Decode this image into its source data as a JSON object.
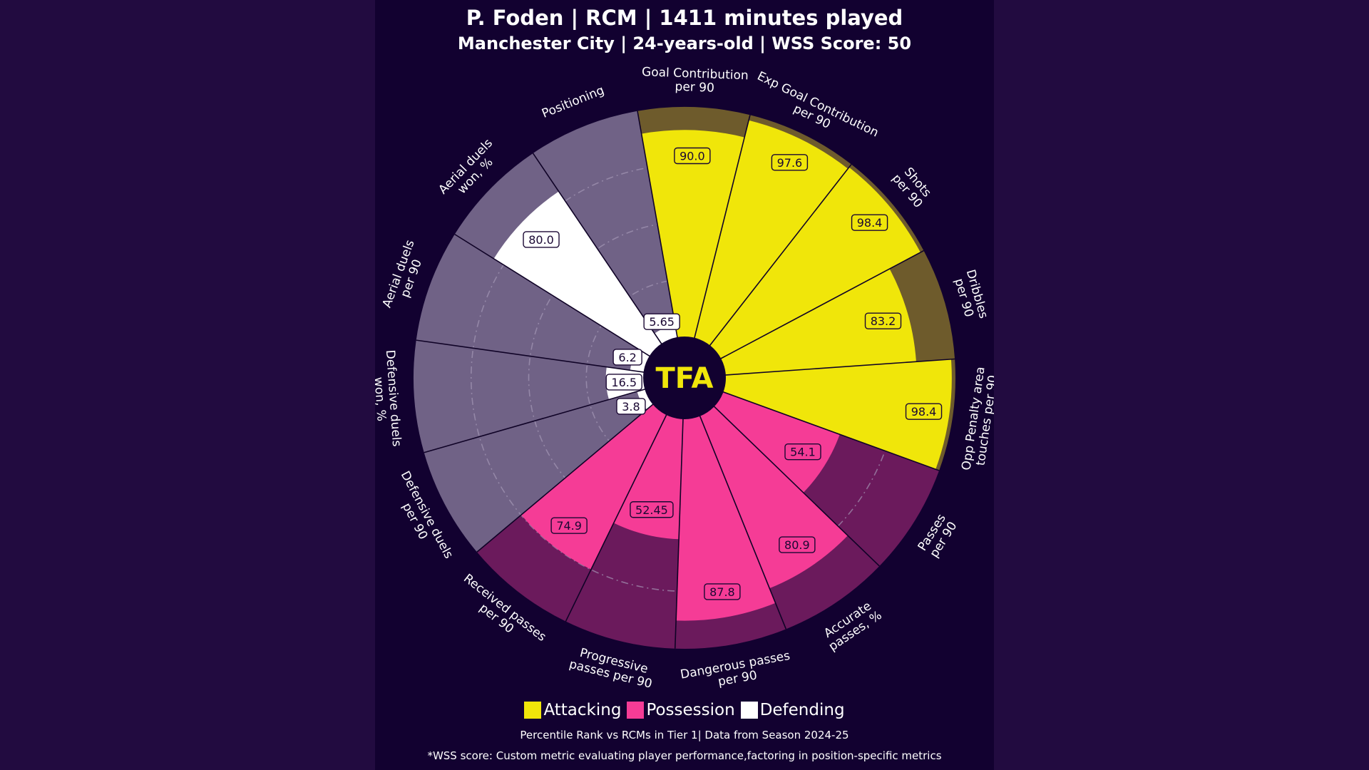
{
  "header": {
    "title": "P. Foden | RCM | 1411 minutes played",
    "subtitle": "Manchester City | 24-years-old | WSS Score: 50"
  },
  "logo_text": "TFA",
  "colors": {
    "attacking": "#f0e60a",
    "possession": "#f53c96",
    "defending": "#ffffff",
    "attacking_bg": "#6e5b2c",
    "possession_bg": "#6b1a5c",
    "defending_bg": "#706286",
    "page_bg": "#220b40",
    "panel_bg": "#120130"
  },
  "chart_data": {
    "type": "radar",
    "metrics": [
      {
        "label": "Goal Contribution\nper 90",
        "value_label": "90.0",
        "percentile": 90.0,
        "category": "attacking"
      },
      {
        "label": "Exp Goal Contribution\nper 90",
        "value_label": "97.6",
        "percentile": 97.6,
        "category": "attacking"
      },
      {
        "label": "Shots\nper 90",
        "value_label": "98.4",
        "percentile": 98.4,
        "category": "attacking"
      },
      {
        "label": "Dribbles\nper 90",
        "value_label": "83.2",
        "percentile": 83.2,
        "category": "attacking"
      },
      {
        "label": "Opp Penalty area\ntouches per 90",
        "value_label": "98.4",
        "percentile": 98.4,
        "category": "attacking"
      },
      {
        "label": "Passes\nper 90",
        "value_label": "54.1",
        "percentile": 54.1,
        "category": "possession"
      },
      {
        "label": "Accurate\npasses, %",
        "value_label": "80.9",
        "percentile": 80.9,
        "category": "possession"
      },
      {
        "label": "Dangerous passes\nper 90",
        "value_label": "87.8",
        "percentile": 87.8,
        "category": "possession"
      },
      {
        "label": "Progressive\npasses per 90",
        "value_label": "52.45",
        "percentile": 52.45,
        "category": "possession"
      },
      {
        "label": "Received passes\nper 90",
        "value_label": "74.9",
        "percentile": 74.9,
        "category": "possession"
      },
      {
        "label": "Defensive duels\nper 90",
        "value_label": "3.8",
        "percentile": 3.8,
        "category": "defending"
      },
      {
        "label": "Defensive duels\nwon, %",
        "value_label": "16.5",
        "percentile": 16.5,
        "category": "defending"
      },
      {
        "label": "Aerial duels\nper 90",
        "value_label": "6.2",
        "percentile": 6.2,
        "category": "defending"
      },
      {
        "label": "Aerial duels\nwon, %",
        "value_label": "80.0",
        "percentile": 80.0,
        "category": "defending"
      },
      {
        "label": "Positioning",
        "value_label": "5.65",
        "percentile": 5.65,
        "category": "defending"
      }
    ],
    "range": [
      0,
      100
    ],
    "grid": true,
    "legend": [
      {
        "name": "Attacking",
        "category": "attacking"
      },
      {
        "name": "Possession",
        "category": "possession"
      },
      {
        "name": "Defending",
        "category": "defending"
      }
    ],
    "legend_position": "bottom"
  },
  "footer": {
    "line1": "Percentile Rank vs RCMs in Tier 1| Data from Season 2024-25",
    "line2": "*WSS score: Custom metric evaluating player performance,factoring in position-specific metrics"
  }
}
